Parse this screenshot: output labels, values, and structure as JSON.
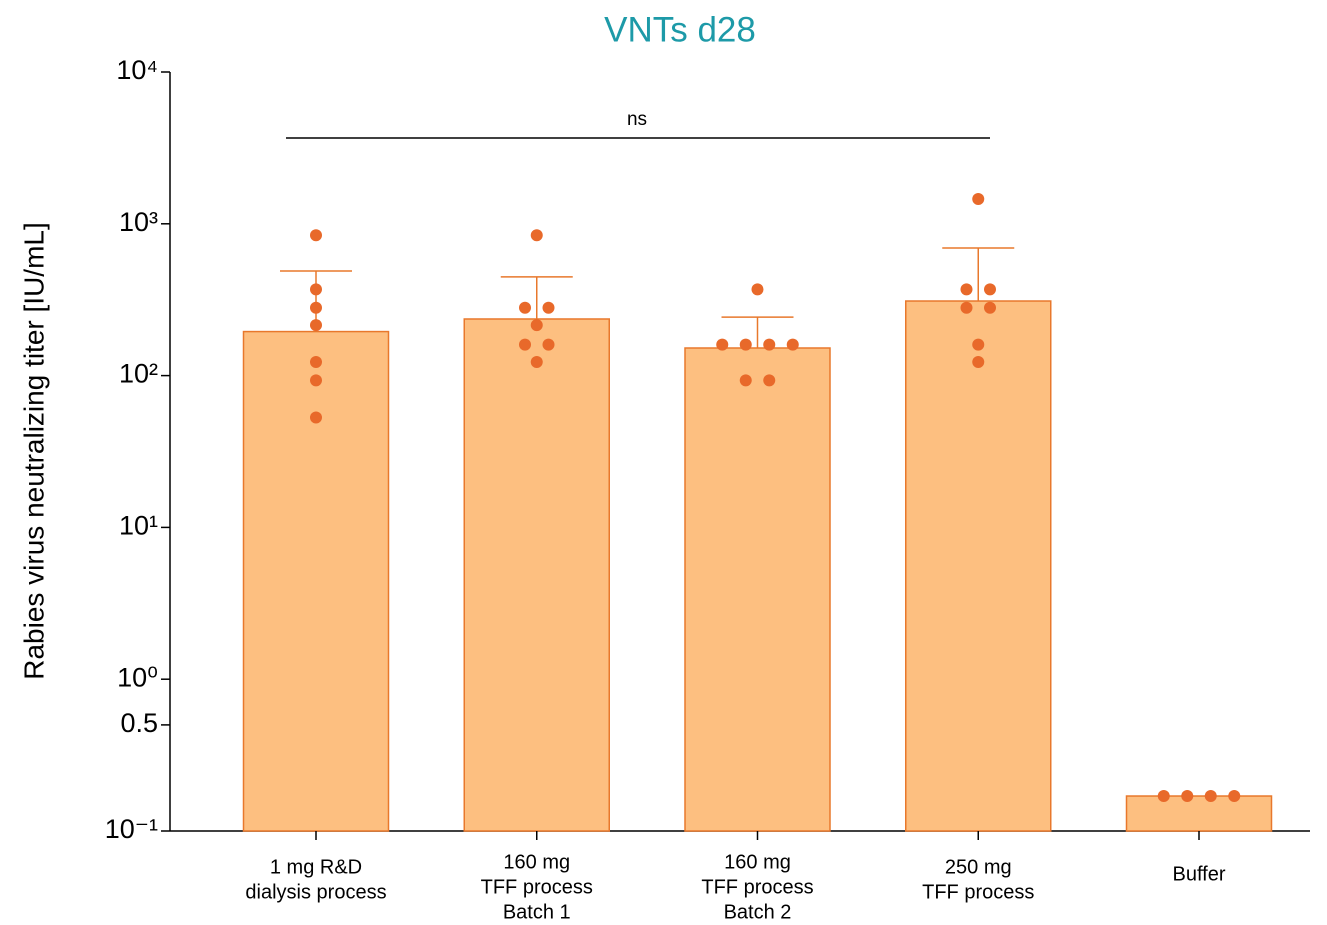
{
  "chart_data": {
    "type": "bar",
    "title": "VNTs d28",
    "y_label": "Rabies virus neutralizing titer [IU/mL]",
    "yscale": "log",
    "ylim": [
      0.1,
      10000
    ],
    "yticks": [
      {
        "value": 0.1,
        "label": "10⁻¹"
      },
      0.5,
      {
        "value": 1,
        "label": "10⁰"
      },
      {
        "value": 10,
        "label": "10¹"
      },
      {
        "value": 100,
        "label": "10²"
      },
      {
        "value": 1000,
        "label": "10³"
      },
      {
        "value": 10000,
        "label": "10⁴"
      }
    ],
    "categories": [
      [
        "1 mg R&D",
        "dialysis process"
      ],
      [
        "160 mg",
        "TFF process",
        "Batch 1"
      ],
      [
        "160 mg",
        "TFF process",
        "Batch 2"
      ],
      [
        "250 mg",
        "TFF process"
      ],
      [
        "Buffer"
      ]
    ],
    "values": [
      195,
      236,
      152,
      310,
      0.17
    ],
    "errors": [
      294,
      211,
      91,
      383,
      0
    ],
    "points": [
      [
        840,
        370,
        280,
        215,
        123,
        93,
        53
      ],
      [
        840,
        280,
        280,
        215,
        160,
        160,
        123
      ],
      [
        370,
        160,
        160,
        160,
        160,
        93,
        93
      ],
      [
        1456,
        370,
        370,
        280,
        280,
        160,
        123
      ],
      [
        0.17,
        0.17,
        0.17,
        0.17
      ]
    ],
    "color": "#fdbf80",
    "edge_color": "#e8782c",
    "point_color": "#e8692a",
    "title_color": "#1d9aa8",
    "annotations": [
      {
        "text": "ns"
      }
    ]
  }
}
